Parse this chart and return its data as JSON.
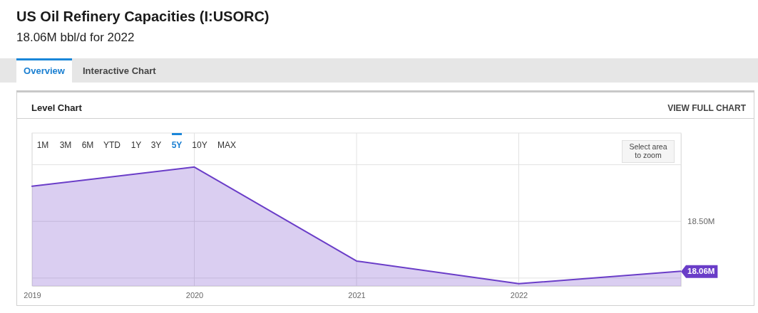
{
  "chart_data": {
    "type": "area",
    "title": "US Oil Refinery Capacities (I:USORC)",
    "subtitle": "18.06M bbl/d for 2022",
    "x": [
      2019,
      2020,
      2021,
      2022,
      2023
    ],
    "values": [
      18.81,
      18.98,
      18.15,
      17.95,
      18.06
    ],
    "color": "#6a3dc8",
    "xlim": [
      2019,
      2023
    ],
    "xticks": [
      2019,
      2020,
      2021,
      2022
    ],
    "ylim": [
      17.93,
      19.28
    ],
    "yticks": [
      {
        "value": 18,
        "label": null
      },
      {
        "value": 18.06,
        "label": "18.06M"
      },
      {
        "value": 18.5,
        "label": "18.50M"
      },
      {
        "value": 19,
        "label": null
      }
    ],
    "grid": true,
    "annotations": [
      "Overview",
      "Interactive Chart",
      "Level Chart",
      "VIEW FULL CHART",
      "1M",
      "3M",
      "6M",
      "YTD",
      "1Y",
      "3Y",
      "5Y",
      "10Y",
      "MAX",
      "Select area to zoom"
    ]
  }
}
